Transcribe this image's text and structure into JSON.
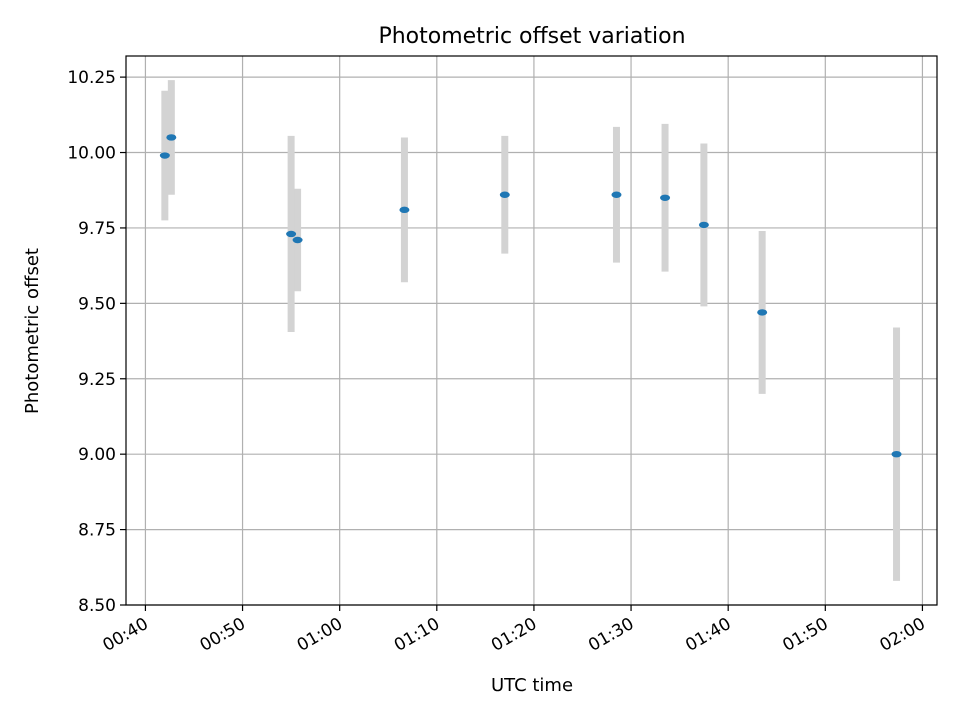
{
  "chart_data": {
    "type": "scatter",
    "title": "Photometric offset variation",
    "xlabel": "UTC time",
    "ylabel": "Photometric offset",
    "x_is_time": true,
    "xlim": [
      "00:38:00",
      "02:01:30"
    ],
    "ylim": [
      8.5,
      10.32
    ],
    "xticks": [
      "00:40",
      "00:50",
      "01:00",
      "01:10",
      "01:20",
      "01:30",
      "01:40",
      "01:50",
      "02:00"
    ],
    "yticks": [
      "8.50",
      "8.75",
      "9.00",
      "9.25",
      "9.50",
      "9.75",
      "10.00",
      "10.25"
    ],
    "grid": true,
    "colors": {
      "point": "#1f77b4",
      "errorbar": "#d3d3d3",
      "grid": "#b0b0b0"
    },
    "series": [
      {
        "points": [
          {
            "x": "00:42:00",
            "y": 9.99,
            "err": 0.215
          },
          {
            "x": "00:42:40",
            "y": 10.05,
            "err": 0.19
          },
          {
            "x": "00:55:00",
            "y": 9.73,
            "err": 0.325
          },
          {
            "x": "00:55:40",
            "y": 9.71,
            "err": 0.17
          },
          {
            "x": "01:06:40",
            "y": 9.81,
            "err": 0.24
          },
          {
            "x": "01:17:00",
            "y": 9.86,
            "err": 0.195
          },
          {
            "x": "01:28:30",
            "y": 9.86,
            "err": 0.225
          },
          {
            "x": "01:33:30",
            "y": 9.85,
            "err": 0.245
          },
          {
            "x": "01:37:30",
            "y": 9.76,
            "err": 0.27
          },
          {
            "x": "01:43:30",
            "y": 9.47,
            "err": 0.27
          },
          {
            "x": "01:57:20",
            "y": 9.0,
            "err": 0.42
          }
        ]
      }
    ]
  }
}
